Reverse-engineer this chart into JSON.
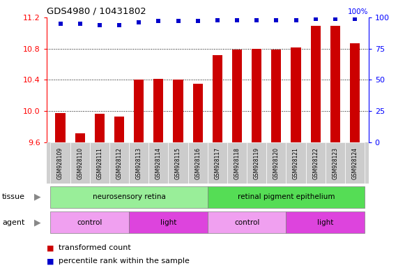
{
  "title": "GDS4980 / 10431802",
  "samples": [
    "GSM928109",
    "GSM928110",
    "GSM928111",
    "GSM928112",
    "GSM928113",
    "GSM928114",
    "GSM928115",
    "GSM928116",
    "GSM928117",
    "GSM928118",
    "GSM928119",
    "GSM928120",
    "GSM928121",
    "GSM928122",
    "GSM928123",
    "GSM928124"
  ],
  "bar_values": [
    9.97,
    9.71,
    9.96,
    9.93,
    10.4,
    10.41,
    10.4,
    10.35,
    10.72,
    10.79,
    10.8,
    10.79,
    10.81,
    11.09,
    11.09,
    10.87
  ],
  "dot_pct": [
    95,
    95,
    94,
    94,
    96,
    97,
    97,
    97,
    98,
    98,
    98,
    98,
    98,
    99,
    99,
    99
  ],
  "ylim_left": [
    9.6,
    11.2
  ],
  "ylim_right": [
    0,
    100
  ],
  "yticks_left": [
    9.6,
    10.0,
    10.4,
    10.8,
    11.2
  ],
  "yticks_right": [
    0,
    25,
    50,
    75,
    100
  ],
  "bar_color": "#cc0000",
  "dot_color": "#0000cc",
  "bar_width": 0.5,
  "tissue_groups": [
    {
      "label": "neurosensory retina",
      "start": 0,
      "end": 7,
      "color": "#99ee99"
    },
    {
      "label": "retinal pigment epithelium",
      "start": 8,
      "end": 15,
      "color": "#55dd55"
    }
  ],
  "agent_groups": [
    {
      "label": "control",
      "start": 0,
      "end": 3,
      "color": "#f0a0f0"
    },
    {
      "label": "light",
      "start": 4,
      "end": 7,
      "color": "#dd44dd"
    },
    {
      "label": "control",
      "start": 8,
      "end": 11,
      "color": "#f0a0f0"
    },
    {
      "label": "light",
      "start": 12,
      "end": 15,
      "color": "#dd44dd"
    }
  ],
  "plot_bg": "#ffffff",
  "fig_bg": "#ffffff"
}
